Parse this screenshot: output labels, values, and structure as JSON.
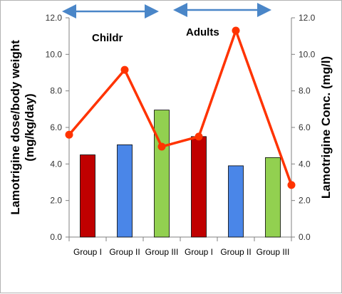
{
  "chart_data": {
    "type": "bar",
    "categories": [
      "Group I",
      "Group II",
      "Group III",
      "Group I",
      "Group II",
      "Group III"
    ],
    "bar_series": {
      "values": [
        4.5,
        5.05,
        6.95,
        5.5,
        3.9,
        4.35
      ],
      "colors": [
        "#c00000",
        "#4a86e8",
        "#92d050",
        "#c00000",
        "#4a86e8",
        "#92d050"
      ]
    },
    "line_series": {
      "values": [
        5.6,
        9.15,
        4.95,
        5.5,
        11.3,
        2.85
      ],
      "color": "#ff3300"
    },
    "ylabel": "Lamotrigine dose/body weight (mg/kg/day)",
    "ylabel_lines": [
      "Lamotrigine dose/body weight",
      "(mg/kg/day)"
    ],
    "y2label": "Lamotrigine  Conc. (mg/l)",
    "ylim": [
      0,
      12
    ],
    "y2lim": [
      0,
      12
    ],
    "yticks": [
      "0.0",
      "2.0",
      "4.0",
      "6.0",
      "8.0",
      "10.0",
      "12.0"
    ],
    "y2ticks": [
      "0.0",
      "2.0",
      "4.0",
      "6.0",
      "8.0",
      "10.0",
      "12.0"
    ],
    "annotations": [
      {
        "text": "Childr",
        "arrow_color": "#4a86c8"
      },
      {
        "text": "Adults",
        "arrow_color": "#4a86c8"
      }
    ],
    "grid": false
  }
}
